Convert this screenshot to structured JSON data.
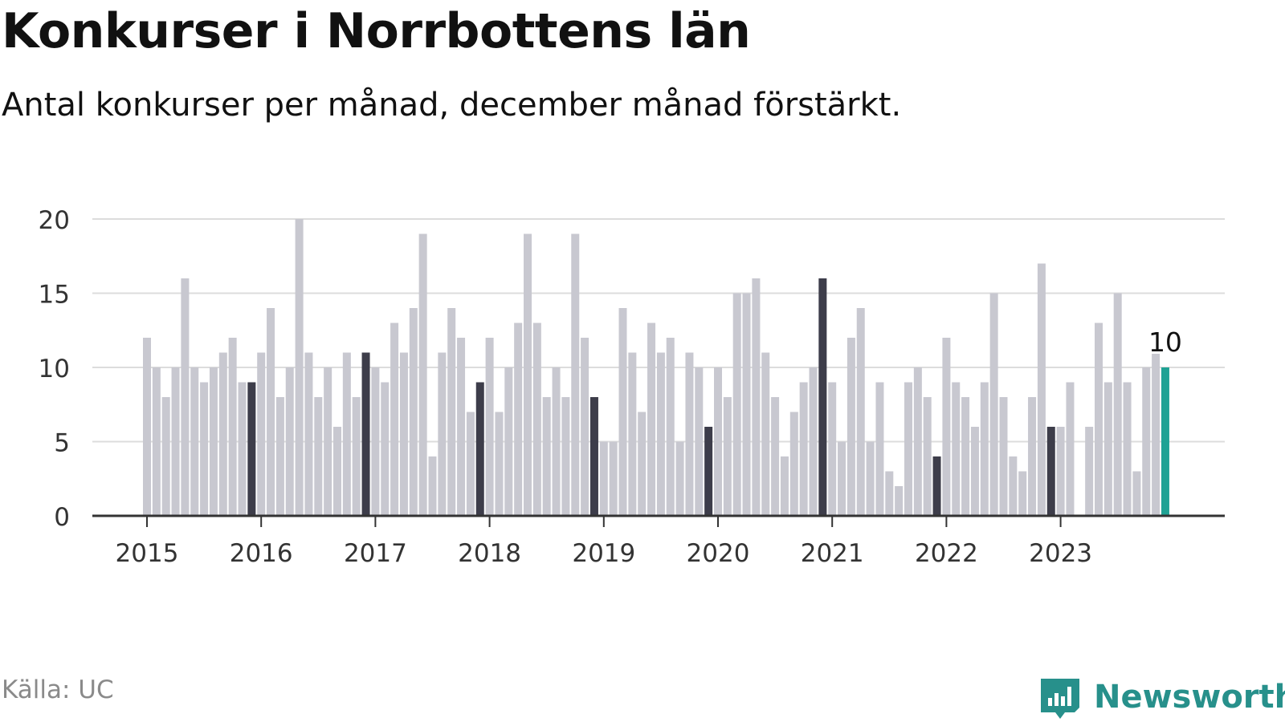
{
  "title": "Konkurser i Norrbottens län",
  "subtitle": "Antal konkurser per månad, december månad förstärkt.",
  "source": "Källa: UC",
  "brand": {
    "name": "Newsworthy",
    "icon": "newsworthy-logo-icon"
  },
  "colors": {
    "bar": "#c8c8d0",
    "december": "#3d3d4a",
    "latest": "#1fa294",
    "grid": "#dcdcdc",
    "axis": "#333333",
    "text": "#333333"
  },
  "chart_data": {
    "type": "bar",
    "title": "Konkurser i Norrbottens län",
    "subtitle": "Antal konkurser per månad, december månad förstärkt.",
    "ylim": [
      0,
      20
    ],
    "yticks": [
      0,
      5,
      10,
      15,
      20
    ],
    "xticks": [
      "2015",
      "2016",
      "2017",
      "2018",
      "2019",
      "2020",
      "2021",
      "2022",
      "2023"
    ],
    "grid": true,
    "start": "2015-01",
    "end": "2023-12",
    "values": [
      12,
      10,
      8,
      10,
      16,
      10,
      9,
      10,
      11,
      12,
      9,
      9,
      11,
      14,
      8,
      10,
      20,
      11,
      8,
      10,
      6,
      11,
      8,
      11,
      10,
      9,
      13,
      11,
      14,
      19,
      4,
      11,
      14,
      12,
      7,
      9,
      12,
      7,
      10,
      13,
      19,
      13,
      8,
      10,
      8,
      19,
      12,
      8,
      5,
      5,
      14,
      11,
      7,
      13,
      11,
      12,
      5,
      11,
      10,
      6,
      10,
      8,
      15,
      15,
      16,
      11,
      8,
      4,
      7,
      9,
      10,
      16,
      9,
      5,
      12,
      14,
      5,
      9,
      3,
      2,
      9,
      10,
      8,
      4,
      12,
      9,
      8,
      6,
      9,
      15,
      8,
      4,
      3,
      8,
      17,
      6,
      6,
      9,
      0,
      6,
      13,
      9,
      15,
      9,
      3,
      10,
      11,
      10
    ],
    "highlight": "december",
    "annotation": {
      "label": "10",
      "value": 10,
      "date": "2023-12"
    }
  }
}
